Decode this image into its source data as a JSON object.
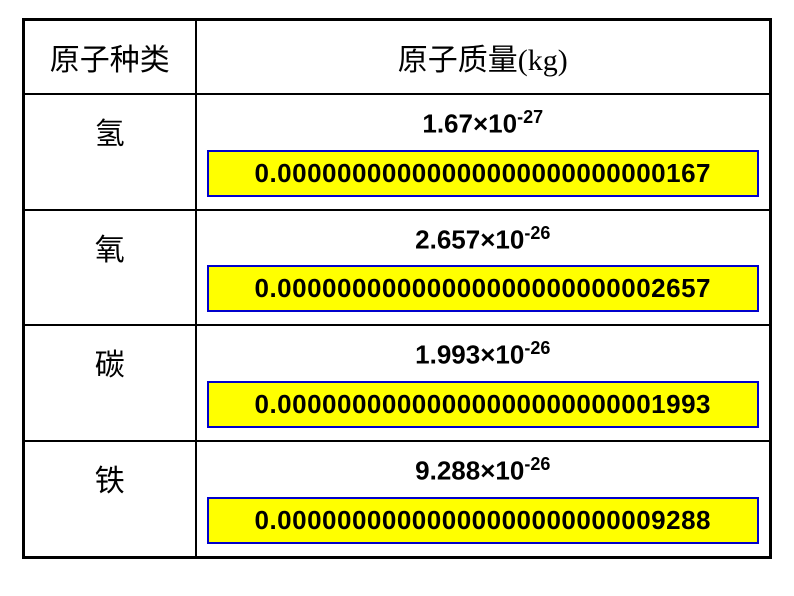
{
  "table": {
    "headers": {
      "atom_type": "原子种类",
      "atom_mass": "原子质量(kg)"
    },
    "rows": [
      {
        "element": "氢",
        "sci_base": "1.67×10",
        "sci_exp": "-27",
        "decimal": "0.00000000000000000000000000167"
      },
      {
        "element": "氧",
        "sci_base": "2.657×10",
        "sci_exp": "-26",
        "decimal": "0.00000000000000000000000002657"
      },
      {
        "element": "碳",
        "sci_base": "1.993×10",
        "sci_exp": "-26",
        "decimal": "0.00000000000000000000000001993"
      },
      {
        "element": "铁",
        "sci_base": "9.288×10",
        "sci_exp": "-26",
        "decimal": "0.00000000000000000000000009288"
      }
    ],
    "styling": {
      "table_border_color": "#000000",
      "highlight_bg": "#ffff00",
      "highlight_border": "#0000cc",
      "page_bg": "#ffffff",
      "header_fontsize": 30,
      "sci_fontsize": 26,
      "decimal_fontsize": 26
    }
  }
}
